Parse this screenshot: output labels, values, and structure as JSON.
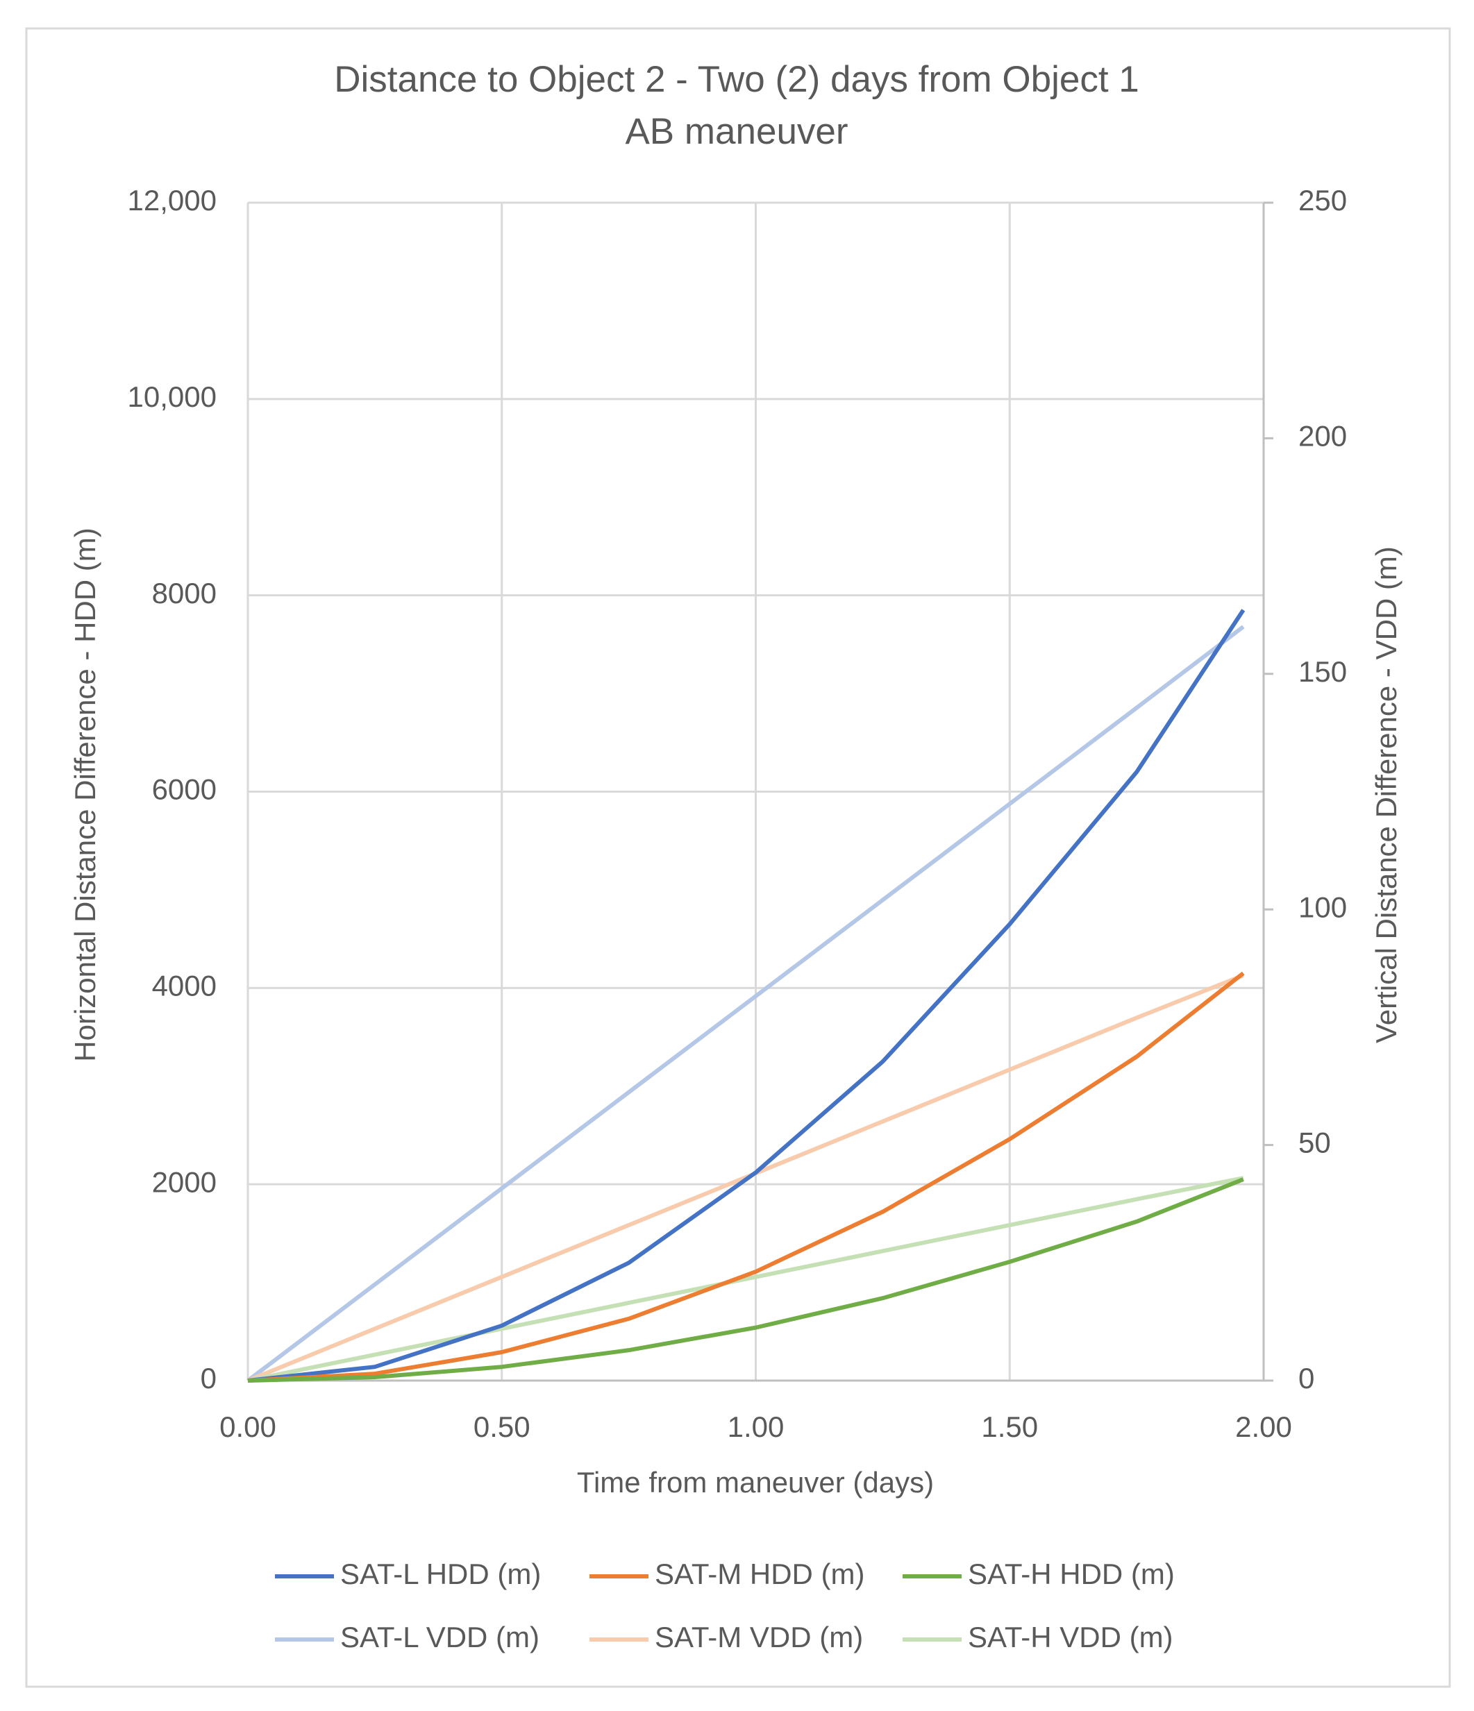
{
  "chart_data": {
    "type": "line",
    "title": "Distance to Object 2 - Two (2) days from Object 1",
    "subtitle": "AB maneuver",
    "x_label": "Time from maneuver (days)",
    "y_label": "Horizontal Distance Difference - HDD (m)",
    "y2_label": "Vertical Distance Difference - VDD (m)",
    "x": [
      0,
      0.25,
      0.5,
      0.75,
      1.0,
      1.25,
      1.5,
      1.75,
      1.96
    ],
    "series": [
      {
        "name": "SAT-L HDD (m)",
        "color": "#4472c4",
        "values": [
          0,
          140,
          560,
          1200,
          2120,
          3250,
          4650,
          6200,
          7850
        ]
      },
      {
        "name": "SAT-M HDD (m)",
        "color": "#ed7d31",
        "values": [
          0,
          70,
          290,
          630,
          1110,
          1720,
          2460,
          3300,
          4150
        ]
      },
      {
        "name": "SAT-H HDD (m)",
        "color": "#70ad47",
        "values": [
          0,
          35,
          140,
          310,
          540,
          840,
          1210,
          1620,
          2050
        ]
      },
      {
        "name": "SAT-L VDD (m)",
        "color": "#b4c7e7",
        "axis": "y2",
        "values": [
          0,
          20.4,
          40.8,
          61.2,
          81.6,
          102,
          122.4,
          142.8,
          160
        ]
      },
      {
        "name": "SAT-M VDD (m)",
        "color": "#f8cbad",
        "axis": "y2",
        "values": [
          0,
          11,
          22,
          33,
          44,
          55,
          66,
          77,
          86
        ]
      },
      {
        "name": "SAT-H VDD (m)",
        "color": "#c5e0b4",
        "axis": "y2",
        "values": [
          0,
          5.5,
          11,
          16.5,
          22,
          27.5,
          33,
          38.5,
          43
        ]
      }
    ],
    "xlim": [
      0,
      2
    ],
    "xticks": [
      {
        "value": 0,
        "label": "0.00"
      },
      {
        "value": 0.5,
        "label": "0.50"
      },
      {
        "value": 1,
        "label": "1.00"
      },
      {
        "value": 1.5,
        "label": "1.50"
      },
      {
        "value": 2,
        "label": "2.00"
      }
    ],
    "ylim": [
      0,
      12000
    ],
    "yticks": [
      0,
      2000,
      4000,
      6000,
      8000,
      {
        "value": 10000,
        "label": "10,000"
      },
      {
        "value": 12000,
        "label": "12,000"
      }
    ],
    "y2lim": [
      0,
      250
    ],
    "y2ticks": [
      0,
      50,
      100,
      150,
      200,
      250
    ],
    "grid": true,
    "legend": "bottom"
  }
}
